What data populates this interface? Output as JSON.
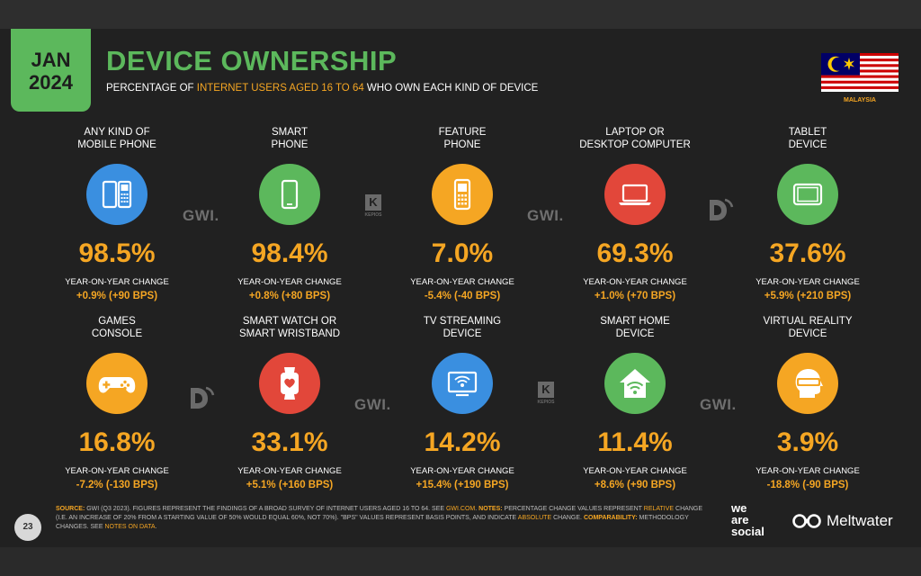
{
  "header": {
    "month": "JAN",
    "year": "2024",
    "title": "DEVICE OWNERSHIP",
    "subtitle_pre": "PERCENTAGE OF ",
    "subtitle_highlight": "INTERNET USERS AGED 16 TO 64",
    "subtitle_post": " WHO OWN EACH KIND OF DEVICE",
    "country": "MALAYSIA"
  },
  "colors": {
    "green": "#5cb85c",
    "orange": "#f5a623",
    "blue": "#3a8fe0",
    "red": "#e2473a",
    "background": "#212121"
  },
  "devices": [
    {
      "label_1": "ANY KIND OF",
      "label_2": "MOBILE PHONE",
      "icon": "mobile-phones-icon",
      "color": "#3a8fe0",
      "value": "98.5%",
      "yoy_label": "YEAR-ON-YEAR CHANGE",
      "yoy": "+0.9% (+90 BPS)"
    },
    {
      "label_1": "SMART",
      "label_2": "PHONE",
      "icon": "smartphone-icon",
      "color": "#5cb85c",
      "value": "98.4%",
      "yoy_label": "YEAR-ON-YEAR CHANGE",
      "yoy": "+0.8% (+80 BPS)"
    },
    {
      "label_1": "FEATURE",
      "label_2": "PHONE",
      "icon": "feature-phone-icon",
      "color": "#f5a623",
      "value": "7.0%",
      "yoy_label": "YEAR-ON-YEAR CHANGE",
      "yoy": "-5.4% (-40 BPS)"
    },
    {
      "label_1": "LAPTOP OR",
      "label_2": "DESKTOP COMPUTER",
      "icon": "laptop-icon",
      "color": "#e2473a",
      "value": "69.3%",
      "yoy_label": "YEAR-ON-YEAR CHANGE",
      "yoy": "+1.0% (+70 BPS)"
    },
    {
      "label_1": "TABLET",
      "label_2": "DEVICE",
      "icon": "tablet-icon",
      "color": "#5cb85c",
      "value": "37.6%",
      "yoy_label": "YEAR-ON-YEAR CHANGE",
      "yoy": "+5.9% (+210 BPS)"
    },
    {
      "label_1": "GAMES",
      "label_2": "CONSOLE",
      "icon": "game-controller-icon",
      "color": "#f5a623",
      "value": "16.8%",
      "yoy_label": "YEAR-ON-YEAR CHANGE",
      "yoy": "-7.2% (-130 BPS)"
    },
    {
      "label_1": "SMART WATCH OR",
      "label_2": "SMART WRISTBAND",
      "icon": "smartwatch-icon",
      "color": "#e2473a",
      "value": "33.1%",
      "yoy_label": "YEAR-ON-YEAR CHANGE",
      "yoy": "+5.1% (+160 BPS)"
    },
    {
      "label_1": "TV STREAMING",
      "label_2": "DEVICE",
      "icon": "tv-streaming-icon",
      "color": "#3a8fe0",
      "value": "14.2%",
      "yoy_label": "YEAR-ON-YEAR CHANGE",
      "yoy": "+15.4% (+190 BPS)"
    },
    {
      "label_1": "SMART HOME",
      "label_2": "DEVICE",
      "icon": "smart-home-icon",
      "color": "#5cb85c",
      "value": "11.4%",
      "yoy_label": "YEAR-ON-YEAR CHANGE",
      "yoy": "+8.6% (+90 BPS)"
    },
    {
      "label_1": "VIRTUAL REALITY",
      "label_2": "DEVICE",
      "icon": "vr-headset-icon",
      "color": "#f5a623",
      "value": "3.9%",
      "yoy_label": "YEAR-ON-YEAR CHANGE",
      "yoy": "-18.8% (-90 BPS)"
    }
  ],
  "source_logos": {
    "gwi": "GWI.",
    "kepios_letter": "K",
    "kepios_text": "KEPIOS"
  },
  "footer": {
    "page_number": "23",
    "source_label": "SOURCE:",
    "source_text": " GWI (Q3 2023). FIGURES REPRESENT THE FINDINGS OF A BROAD SURVEY OF INTERNET USERS AGED 16 TO 64. SEE ",
    "gwi_link": "GWI.COM",
    "notes_label": "NOTES:",
    "notes_text_1": " PERCENTAGE CHANGE VALUES REPRESENT ",
    "relative": "RELATIVE",
    "notes_text_2": " CHANGE (I.E. AN INCREASE OF 20% FROM A STARTING VALUE OF 50% WOULD EQUAL 60%, NOT 70%). \"BPS\" VALUES REPRESENT BASIS POINTS, AND INDICATE ",
    "absolute": "ABSOLUTE",
    "notes_text_3": " CHANGE. ",
    "comparability_label": "COMPARABILITY:",
    "comparability_text": " METHODOLOGY CHANGES. SEE ",
    "notes_on_data": "NOTES ON DATA",
    "end": ".",
    "was_1": "we",
    "was_2": "are",
    "was_3": "social",
    "meltwater": "Meltwater"
  }
}
